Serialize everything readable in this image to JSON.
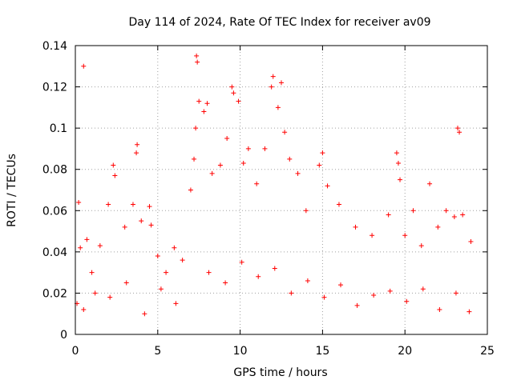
{
  "chart_data": {
    "type": "scatter",
    "title": "Day 114 of 2024, Rate Of TEC Index for receiver av09",
    "xlabel": "GPS time / hours",
    "ylabel": "ROTI / TECUs",
    "xlim": [
      0,
      25
    ],
    "ylim": [
      0,
      0.14
    ],
    "xticks": [
      0,
      5,
      10,
      15,
      20,
      25
    ],
    "xtick_labels": [
      "0",
      "5",
      "10",
      "15",
      "20",
      "25"
    ],
    "yticks": [
      0,
      0.02,
      0.04,
      0.06,
      0.08,
      0.1,
      0.12,
      0.14
    ],
    "ytick_labels": [
      "0",
      "0.02",
      "0.04",
      "0.06",
      "0.08",
      "0.1",
      "0.12",
      "0.14"
    ],
    "grid": true,
    "marker": "+",
    "color": "#ff0000",
    "points": [
      [
        0.1,
        0.015
      ],
      [
        0.2,
        0.064
      ],
      [
        0.3,
        0.042
      ],
      [
        0.5,
        0.13
      ],
      [
        0.7,
        0.046
      ],
      [
        1.0,
        0.03
      ],
      [
        1.5,
        0.043
      ],
      [
        2.0,
        0.063
      ],
      [
        2.3,
        0.082
      ],
      [
        2.4,
        0.077
      ],
      [
        3.0,
        0.052
      ],
      [
        3.5,
        0.063
      ],
      [
        3.7,
        0.088
      ],
      [
        3.75,
        0.092
      ],
      [
        4.0,
        0.055
      ],
      [
        4.5,
        0.062
      ],
      [
        4.6,
        0.053
      ],
      [
        5.0,
        0.038
      ],
      [
        5.5,
        0.03
      ],
      [
        6.0,
        0.042
      ],
      [
        6.5,
        0.036
      ],
      [
        7.0,
        0.07
      ],
      [
        7.2,
        0.085
      ],
      [
        7.3,
        0.1
      ],
      [
        7.35,
        0.135
      ],
      [
        7.4,
        0.132
      ],
      [
        7.5,
        0.113
      ],
      [
        7.8,
        0.108
      ],
      [
        8.0,
        0.112
      ],
      [
        8.3,
        0.078
      ],
      [
        8.8,
        0.082
      ],
      [
        9.2,
        0.095
      ],
      [
        9.5,
        0.12
      ],
      [
        9.6,
        0.117
      ],
      [
        9.9,
        0.113
      ],
      [
        10.2,
        0.083
      ],
      [
        10.5,
        0.09
      ],
      [
        11.0,
        0.073
      ],
      [
        11.5,
        0.09
      ],
      [
        11.9,
        0.12
      ],
      [
        12.0,
        0.125
      ],
      [
        12.3,
        0.11
      ],
      [
        12.5,
        0.122
      ],
      [
        12.7,
        0.098
      ],
      [
        13.0,
        0.085
      ],
      [
        13.5,
        0.078
      ],
      [
        14.0,
        0.06
      ],
      [
        14.8,
        0.082
      ],
      [
        15.0,
        0.088
      ],
      [
        15.3,
        0.072
      ],
      [
        16.0,
        0.063
      ],
      [
        17.0,
        0.052
      ],
      [
        18.0,
        0.048
      ],
      [
        19.0,
        0.058
      ],
      [
        19.5,
        0.088
      ],
      [
        19.6,
        0.083
      ],
      [
        19.7,
        0.075
      ],
      [
        20.0,
        0.048
      ],
      [
        20.5,
        0.06
      ],
      [
        21.0,
        0.043
      ],
      [
        21.5,
        0.073
      ],
      [
        22.0,
        0.052
      ],
      [
        22.5,
        0.06
      ],
      [
        23.0,
        0.057
      ],
      [
        23.2,
        0.1
      ],
      [
        23.3,
        0.098
      ],
      [
        23.5,
        0.058
      ],
      [
        24.0,
        0.045
      ],
      [
        0.5,
        0.012
      ],
      [
        1.2,
        0.02
      ],
      [
        2.1,
        0.018
      ],
      [
        3.1,
        0.025
      ],
      [
        4.2,
        0.01
      ],
      [
        5.2,
        0.022
      ],
      [
        6.1,
        0.015
      ],
      [
        8.1,
        0.03
      ],
      [
        9.1,
        0.025
      ],
      [
        10.1,
        0.035
      ],
      [
        11.1,
        0.028
      ],
      [
        12.1,
        0.032
      ],
      [
        13.1,
        0.02
      ],
      [
        14.1,
        0.026
      ],
      [
        15.1,
        0.018
      ],
      [
        16.1,
        0.024
      ],
      [
        17.1,
        0.014
      ],
      [
        18.1,
        0.019
      ],
      [
        19.1,
        0.021
      ],
      [
        20.1,
        0.016
      ],
      [
        21.1,
        0.022
      ],
      [
        22.1,
        0.012
      ],
      [
        23.1,
        0.02
      ],
      [
        23.9,
        0.011
      ]
    ]
  }
}
